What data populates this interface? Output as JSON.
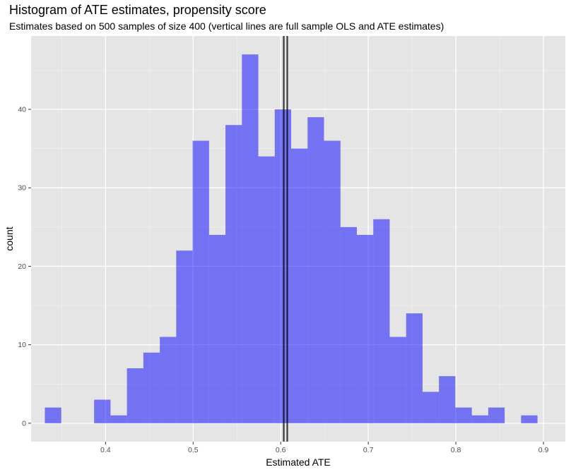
{
  "chart_data": {
    "type": "bar",
    "title": "Histogram of ATE estimates, propensity score",
    "subtitle": "Estimates based on 500 samples of size 400 (vertical lines are full sample OLS and ATE estimates)",
    "xlabel": "Estimated ATE",
    "ylabel": "count",
    "xlim": [
      0.315,
      0.925
    ],
    "ylim": [
      -2.35,
      49.35
    ],
    "x_ticks": [
      0.4,
      0.5,
      0.6,
      0.7,
      0.8,
      0.9
    ],
    "x_tick_labels": [
      "0.4",
      "0.5",
      "0.6",
      "0.7",
      "0.8",
      "0.9"
    ],
    "y_ticks": [
      0,
      10,
      20,
      30,
      40
    ],
    "y_tick_labels": [
      "0",
      "10",
      "20",
      "30",
      "40"
    ],
    "grid": true,
    "bin_width": 0.01875,
    "bin_start": 0.3307,
    "counts": [
      2,
      0,
      0,
      3,
      1,
      7,
      9,
      11,
      22,
      36,
      24,
      38,
      47,
      34,
      40,
      35,
      39,
      36,
      25,
      24,
      26,
      11,
      14,
      4,
      6,
      2,
      1,
      2,
      0,
      1
    ],
    "bar_color": "#0000ff",
    "bar_alpha": 0.5,
    "reference_lines": [
      {
        "label": "full sample OLS",
        "x": 0.6035
      },
      {
        "label": "full sample ATE",
        "x": 0.6075
      }
    ],
    "panel_color": "#e5e5e5",
    "line_color": "#000000"
  }
}
